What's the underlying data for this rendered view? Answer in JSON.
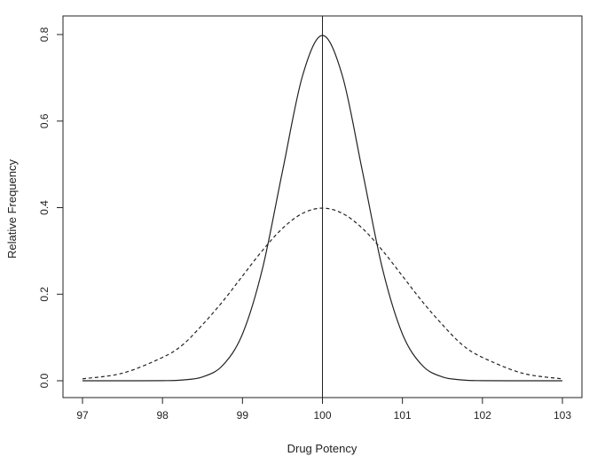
{
  "chart_data": {
    "type": "line",
    "title": "",
    "xlabel": "Drug Potency",
    "ylabel": "Relative Frequency",
    "xlim": [
      97,
      103
    ],
    "ylim": [
      0,
      0.8
    ],
    "x_ticks": [
      97,
      98,
      99,
      100,
      101,
      102,
      103
    ],
    "x_tick_labels": [
      "97",
      "98",
      "99",
      "100",
      "101",
      "102",
      "103"
    ],
    "y_ticks": [
      0.0,
      0.2,
      0.4,
      0.6,
      0.8
    ],
    "y_tick_labels": [
      "0.0",
      "0.2",
      "0.4",
      "0.6",
      "0.8"
    ],
    "grid": false,
    "vertical_line_x": 100,
    "x": [
      97.0,
      97.5,
      98.0,
      98.25,
      98.5,
      98.75,
      99.0,
      99.25,
      99.5,
      99.75,
      100.0,
      100.25,
      100.5,
      100.75,
      101.0,
      101.25,
      101.5,
      101.75,
      102.0,
      102.5,
      103.0
    ],
    "series": [
      {
        "line_style": "solid",
        "color": "#222222",
        "values": [
          0.0,
          0.0,
          0.0003,
          0.0018,
          0.0089,
          0.035,
          0.108,
          0.259,
          0.4839,
          0.7041,
          0.7979,
          0.7041,
          0.4839,
          0.259,
          0.108,
          0.035,
          0.0089,
          0.0018,
          0.0003,
          0.0,
          0.0
        ]
      },
      {
        "line_style": "dashed",
        "color": "#222222",
        "values": [
          0.0044,
          0.0175,
          0.054,
          0.0828,
          0.1295,
          0.1826,
          0.242,
          0.3011,
          0.3521,
          0.3867,
          0.3989,
          0.3867,
          0.3521,
          0.3011,
          0.242,
          0.1826,
          0.1295,
          0.0828,
          0.054,
          0.0175,
          0.0044
        ]
      }
    ]
  }
}
